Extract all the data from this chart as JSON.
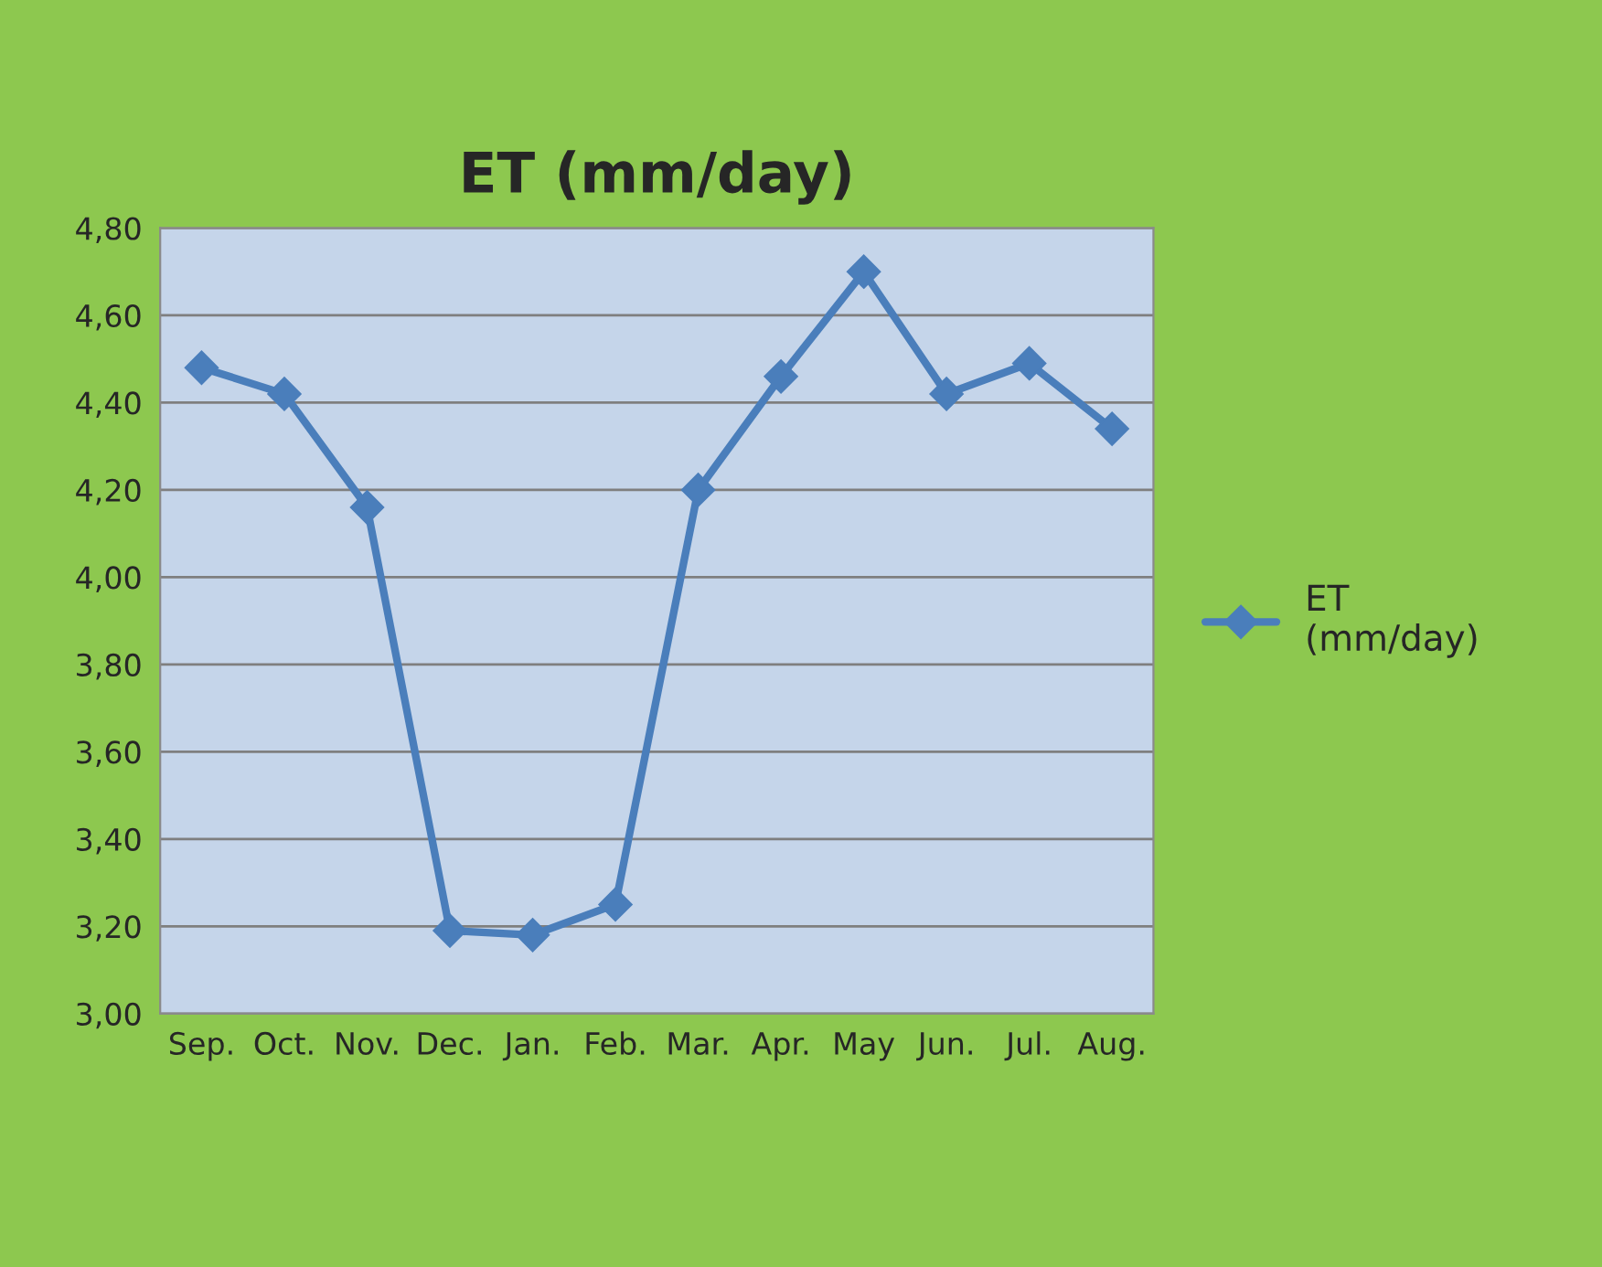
{
  "chart_data": {
    "type": "line",
    "title": "ET (mm/day)",
    "categories": [
      "Sep.",
      "Oct.",
      "Nov.",
      "Dec.",
      "Jan.",
      "Feb.",
      "Mar.",
      "Apr.",
      "May",
      "Jun.",
      "Jul.",
      "Aug."
    ],
    "series": [
      {
        "name": "ET (mm/day)",
        "color": "#4a7ebb",
        "values": [
          4.48,
          4.42,
          4.16,
          3.19,
          3.18,
          3.25,
          4.2,
          4.46,
          4.7,
          4.42,
          4.49,
          4.34
        ]
      }
    ],
    "ylim": [
      3.0,
      4.8
    ],
    "yticks": [
      {
        "value": 3.0,
        "label": "3,00"
      },
      {
        "value": 3.2,
        "label": "3,20"
      },
      {
        "value": 3.4,
        "label": "3,40"
      },
      {
        "value": 3.6,
        "label": "3,60"
      },
      {
        "value": 3.8,
        "label": "3,80"
      },
      {
        "value": 4.0,
        "label": "4,00"
      },
      {
        "value": 4.2,
        "label": "4,20"
      },
      {
        "value": 4.4,
        "label": "4,40"
      },
      {
        "value": 4.6,
        "label": "4,60"
      },
      {
        "value": 4.8,
        "label": "4,80"
      }
    ],
    "grid": "y",
    "legend": "right",
    "marker": "diamond",
    "line_style": "solid"
  }
}
